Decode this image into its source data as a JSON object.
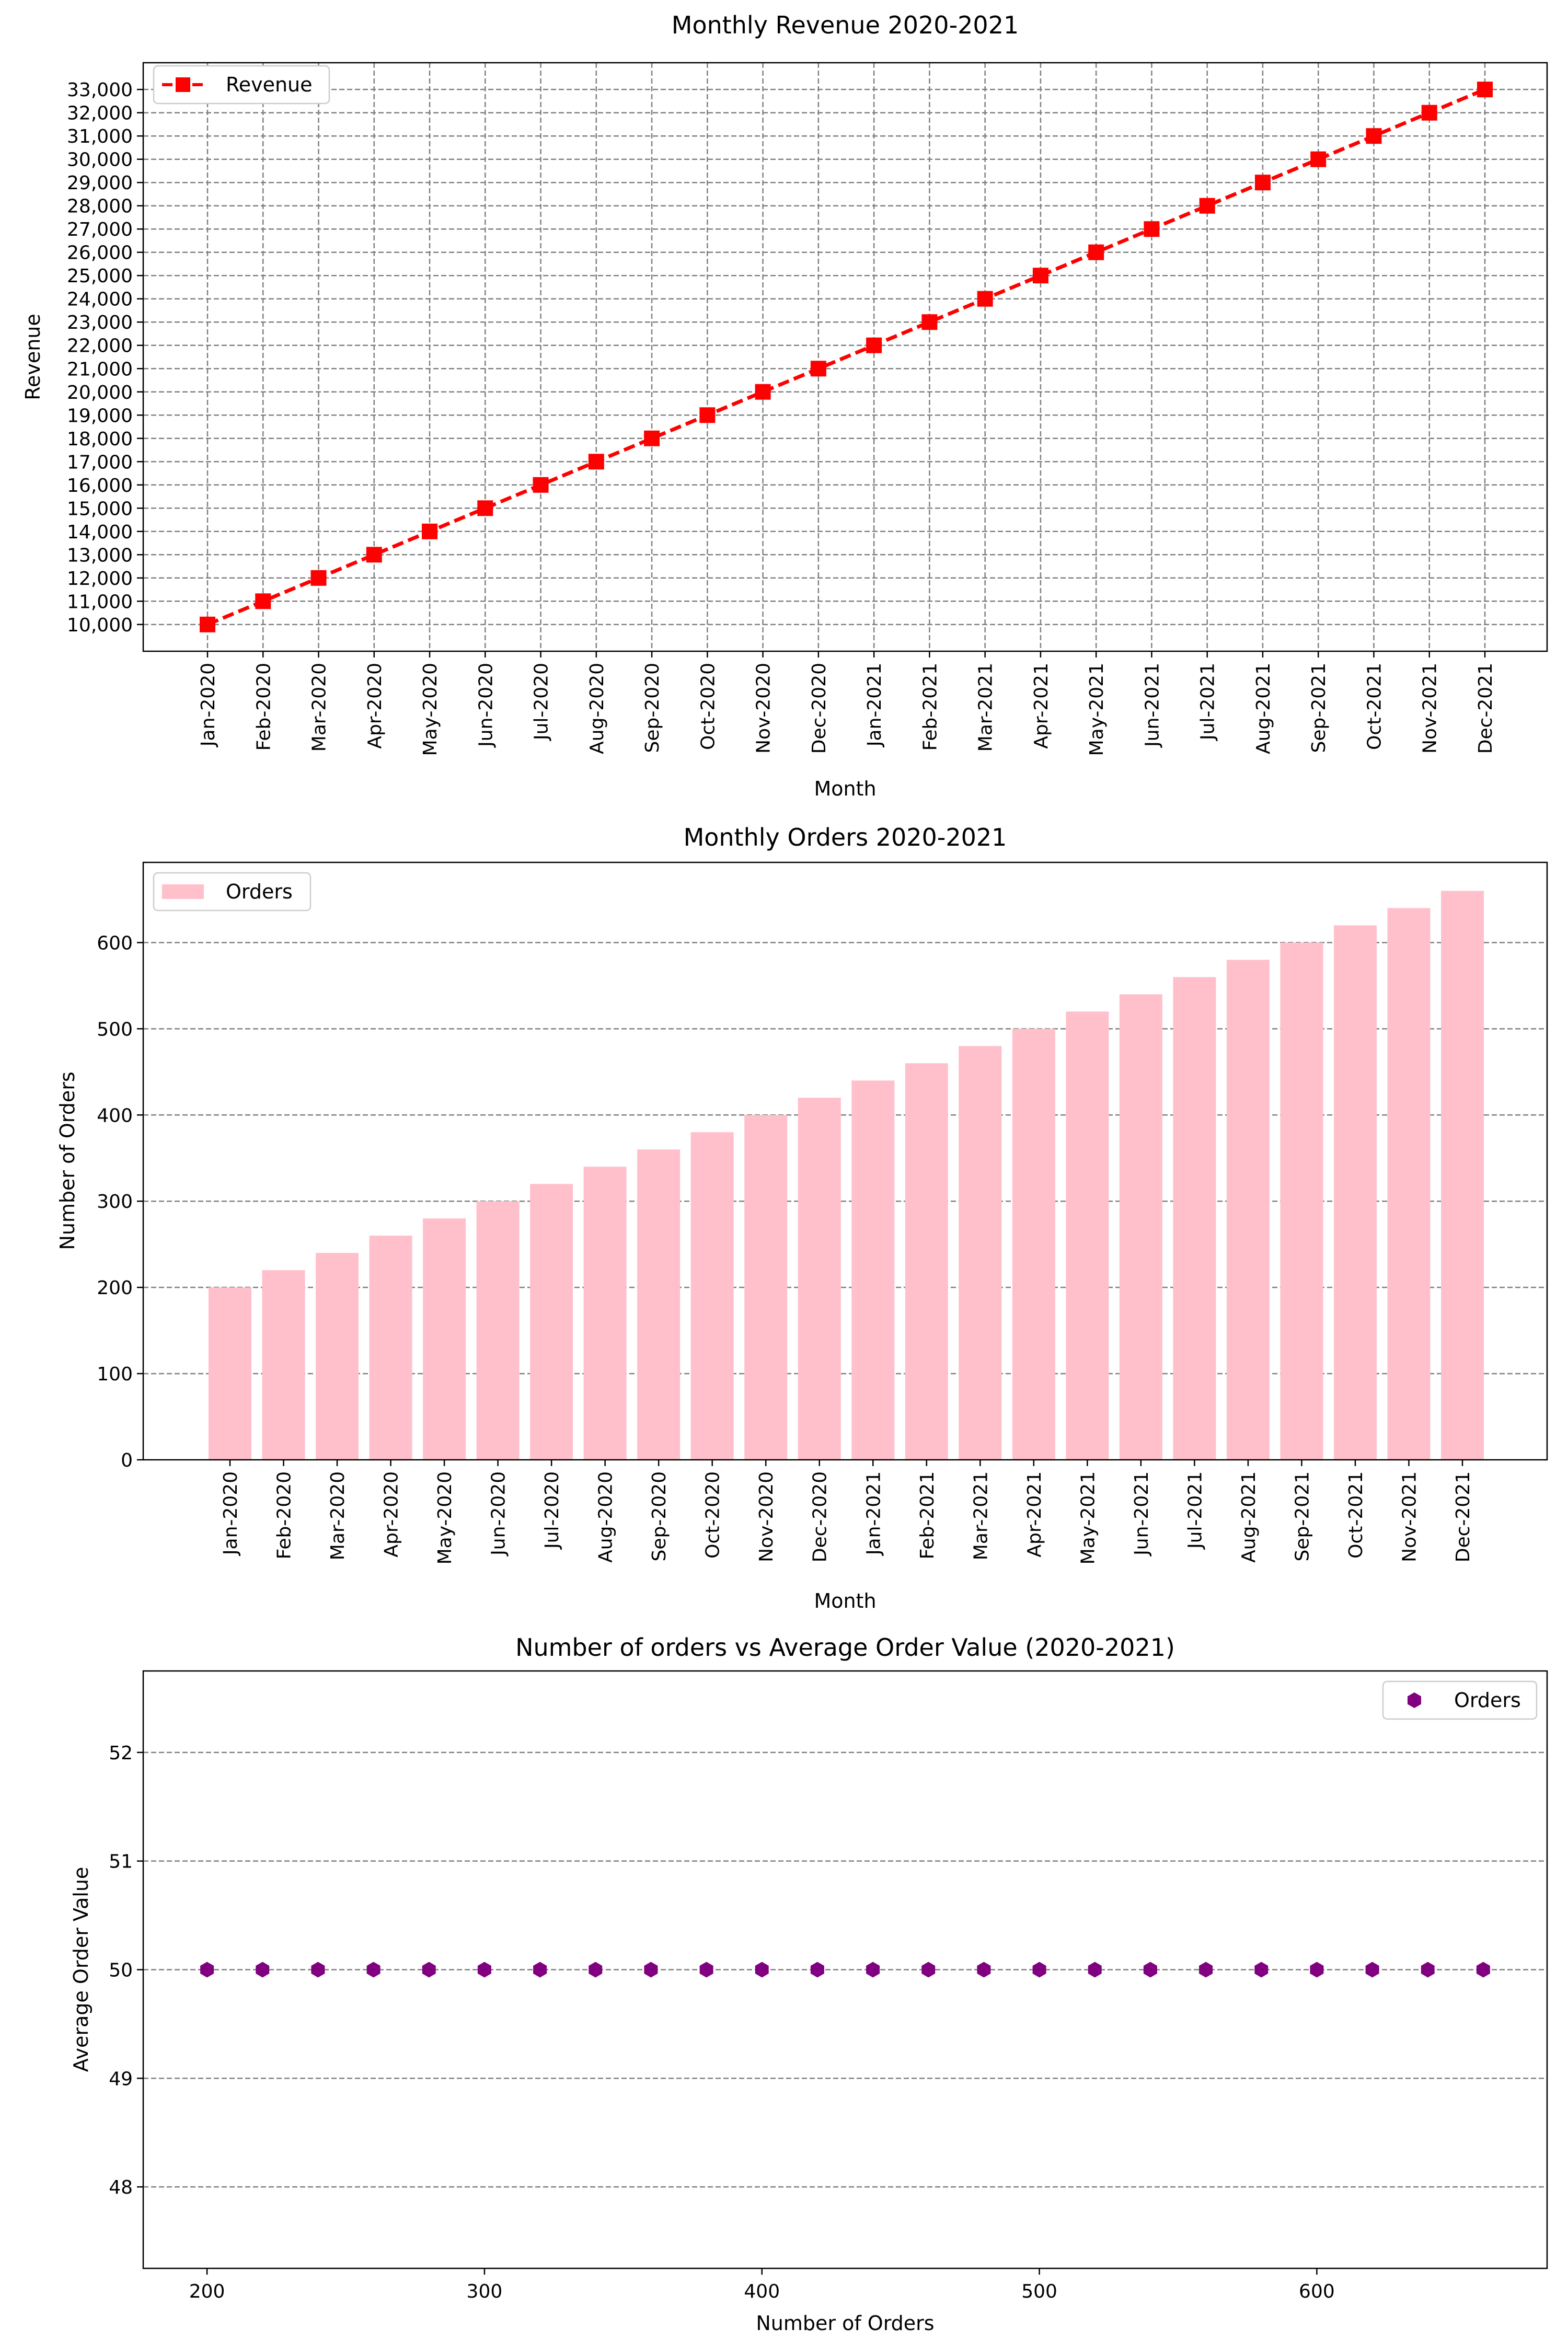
{
  "chart_data": [
    {
      "type": "line",
      "title": "Monthly Revenue 2020-2021",
      "xlabel": "Month",
      "ylabel": "Revenue",
      "categories": [
        "Jan-2020",
        "Feb-2020",
        "Mar-2020",
        "Apr-2020",
        "May-2020",
        "Jun-2020",
        "Jul-2020",
        "Aug-2020",
        "Sep-2020",
        "Oct-2020",
        "Nov-2020",
        "Dec-2020",
        "Jan-2021",
        "Feb-2021",
        "Mar-2021",
        "Apr-2021",
        "May-2021",
        "Jun-2021",
        "Jul-2021",
        "Aug-2021",
        "Sep-2021",
        "Oct-2021",
        "Nov-2021",
        "Dec-2021"
      ],
      "series": [
        {
          "name": "Revenue",
          "values": [
            10000,
            11000,
            12000,
            13000,
            14000,
            15000,
            16000,
            17000,
            18000,
            19000,
            20000,
            21000,
            22000,
            23000,
            24000,
            25000,
            26000,
            27000,
            28000,
            29000,
            30000,
            31000,
            32000,
            33000
          ]
        }
      ],
      "ylim": [
        8850,
        34150
      ],
      "yticks": [
        10000,
        11000,
        12000,
        13000,
        14000,
        15000,
        16000,
        17000,
        18000,
        19000,
        20000,
        21000,
        22000,
        23000,
        24000,
        25000,
        26000,
        27000,
        28000,
        29000,
        30000,
        31000,
        32000,
        33000
      ],
      "ytick_labels": [
        "10,000",
        "11,000",
        "12,000",
        "13,000",
        "14,000",
        "15,000",
        "16,000",
        "17,000",
        "18,000",
        "19,000",
        "20,000",
        "21,000",
        "22,000",
        "23,000",
        "24,000",
        "25,000",
        "26,000",
        "27,000",
        "28,000",
        "29,000",
        "30,000",
        "31,000",
        "32,000",
        "33,000"
      ],
      "grid": "both",
      "legend_position": "upper left",
      "line_style": "dashed",
      "marker": "square",
      "color": "#ff0000"
    },
    {
      "type": "bar",
      "title": "Monthly Orders 2020-2021",
      "xlabel": "Month",
      "ylabel": "Number of Orders",
      "categories": [
        "Jan-2020",
        "Feb-2020",
        "Mar-2020",
        "Apr-2020",
        "May-2020",
        "Jun-2020",
        "Jul-2020",
        "Aug-2020",
        "Sep-2020",
        "Oct-2020",
        "Nov-2020",
        "Dec-2020",
        "Jan-2021",
        "Feb-2021",
        "Mar-2021",
        "Apr-2021",
        "May-2021",
        "Jun-2021",
        "Jul-2021",
        "Aug-2021",
        "Sep-2021",
        "Oct-2021",
        "Nov-2021",
        "Dec-2021"
      ],
      "series": [
        {
          "name": "Orders",
          "values": [
            200,
            220,
            240,
            260,
            280,
            300,
            320,
            340,
            360,
            380,
            400,
            420,
            440,
            460,
            480,
            500,
            520,
            540,
            560,
            580,
            600,
            620,
            640,
            660
          ]
        }
      ],
      "ylim": [
        0,
        693
      ],
      "yticks": [
        0,
        100,
        200,
        300,
        400,
        500,
        600
      ],
      "ytick_labels": [
        "0",
        "100",
        "200",
        "300",
        "400",
        "500",
        "600"
      ],
      "grid": "y",
      "legend_position": "upper left",
      "color": "#ffc0cb"
    },
    {
      "type": "scatter",
      "title": "Number of orders vs Average Order Value (2020-2021)",
      "xlabel": "Number of Orders",
      "ylabel": "Average Order Value",
      "series": [
        {
          "name": "Orders",
          "x": [
            200,
            220,
            240,
            260,
            280,
            300,
            320,
            340,
            360,
            380,
            400,
            420,
            440,
            460,
            480,
            500,
            520,
            540,
            560,
            580,
            600,
            620,
            640,
            660
          ],
          "y": [
            50,
            50,
            50,
            50,
            50,
            50,
            50,
            50,
            50,
            50,
            50,
            50,
            50,
            50,
            50,
            50,
            50,
            50,
            50,
            50,
            50,
            50,
            50,
            50
          ]
        }
      ],
      "xlim": [
        177,
        683
      ],
      "ylim": [
        47.25,
        52.75
      ],
      "xticks": [
        200,
        300,
        400,
        500,
        600
      ],
      "xtick_labels": [
        "200",
        "300",
        "400",
        "500",
        "600"
      ],
      "yticks": [
        48,
        49,
        50,
        51,
        52
      ],
      "ytick_labels": [
        "48",
        "49",
        "50",
        "51",
        "52"
      ],
      "grid": "y",
      "legend_position": "upper right",
      "marker": "hexagon",
      "color": "#800080"
    }
  ]
}
